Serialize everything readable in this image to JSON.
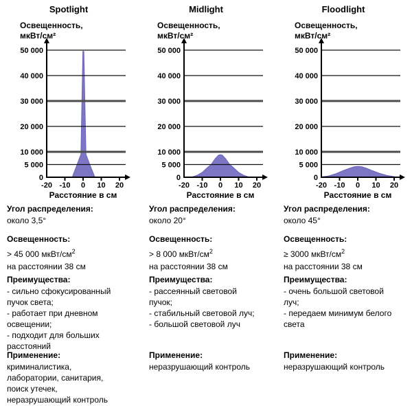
{
  "columns": [
    {
      "title": "Spotlight",
      "y_axis_label_line1": "Освещенность,",
      "y_axis_label_line2": "мкВт/см²",
      "x_axis_label": "Расстояние в см",
      "angle": {
        "label": "Угол распределения:",
        "value": "около 3,5°"
      },
      "illuminance": {
        "label": "Освещенность:",
        "value": "> 45 000 мкВт/см",
        "sup": "2",
        "note": "на расстоянии 38 см"
      },
      "advantages": {
        "label": "Преимущества:",
        "lines": [
          "- сильно сфокусированный",
          "пучок света;",
          "- работает при дневном",
          "освещении;",
          "- подходит для больших",
          "расстояний"
        ]
      },
      "application": {
        "label": "Применение:",
        "lines": [
          "криминалистика,",
          "лаборатории, санитария,",
          "поиск утечек,",
          "неразрушающий контроль"
        ]
      }
    },
    {
      "title": "Midlight",
      "y_axis_label_line1": "Освещенность,",
      "y_axis_label_line2": "мкВт/см²",
      "x_axis_label": "Расстояние в см",
      "angle": {
        "label": "Угол распределения:",
        "value": "около 20°"
      },
      "illuminance": {
        "label": "Освещенность:",
        "value": "> 8 000 мкВт/см",
        "sup": "2",
        "note": "на расстоянии 38 см"
      },
      "advantages": {
        "label": "Преимущества:",
        "lines": [
          "- рассеянный световой",
          "пучок;",
          "- стабильный световой луч;",
          "- большой световой луч"
        ]
      },
      "application": {
        "label": "Применение:",
        "lines": [
          "неразрушающий контроль"
        ]
      }
    },
    {
      "title": "Floodlight",
      "y_axis_label_line1": "Освещенность,",
      "y_axis_label_line2": "мкВт/см²",
      "x_axis_label": "Расстояние в см",
      "angle": {
        "label": "Угол распределения:",
        "value": "около 45°"
      },
      "illuminance": {
        "label": "Освещенность:",
        "value": "≥ 3000 мкВт/см",
        "sup": "2",
        "note": "на расстоянии 38 см"
      },
      "advantages": {
        "label": "Преимущества:",
        "lines": [
          "- очень большой световой",
          "луч;",
          "- передаем минимум белого",
          "света"
        ]
      },
      "application": {
        "label": "Применение:",
        "lines": [
          "неразрушающий контроль"
        ]
      }
    }
  ],
  "chart_data": [
    {
      "type": "area",
      "title": "Spotlight",
      "xlabel": "Расстояние в см",
      "ylabel": "Освещенность, мкВт/см²",
      "xlim": [
        -20,
        20
      ],
      "ylim": [
        0,
        50000
      ],
      "x_ticks": [
        -20,
        -10,
        0,
        10,
        20
      ],
      "x_tick_labels": [
        "-20",
        "-10",
        "0",
        "10",
        "20"
      ],
      "y_ticks": [
        0,
        5000,
        10000,
        20000,
        30000,
        40000,
        50000
      ],
      "y_tick_labels": [
        "0",
        "5 000",
        "10 000",
        "20 000",
        "30 000",
        "40 000",
        "50 000"
      ],
      "thick_gridlines": [
        10000,
        30000
      ],
      "grid": true,
      "legend": false,
      "fill_color": "#7c76c4",
      "edge_color": "#6b63b8",
      "peak_value": 49500,
      "x": [
        -6.0,
        -3.2,
        -1.2,
        -0.1,
        0.4,
        1.6,
        3.6,
        6.5
      ],
      "y": [
        0,
        5200,
        9000,
        49500,
        49500,
        9000,
        5200,
        0
      ]
    },
    {
      "type": "area",
      "title": "Midlight",
      "xlabel": "Расстояние в см",
      "ylabel": "Освещенность, мкВт/см²",
      "xlim": [
        -20,
        20
      ],
      "ylim": [
        0,
        50000
      ],
      "x_ticks": [
        -20,
        -10,
        0,
        10,
        20
      ],
      "x_tick_labels": [
        "-20",
        "-10",
        "0",
        "10",
        "20"
      ],
      "y_ticks": [
        0,
        5000,
        10000,
        20000,
        30000,
        40000,
        50000
      ],
      "y_tick_labels": [
        "0",
        "5 000",
        "10 000",
        "20 000",
        "30 000",
        "40 000",
        "50 000"
      ],
      "thick_gridlines": [
        10000,
        30000
      ],
      "grid": true,
      "legend": false,
      "fill_color": "#7c76c4",
      "edge_color": "#6b63b8",
      "peak_value": 8900,
      "x": [
        -16,
        -13,
        -10,
        -7,
        -5,
        -3,
        -1,
        0,
        1,
        3,
        5,
        7,
        10,
        13,
        16
      ],
      "y": [
        0,
        700,
        1900,
        3900,
        5100,
        7200,
        8700,
        8900,
        8700,
        7200,
        5100,
        3900,
        1900,
        700,
        0
      ]
    },
    {
      "type": "area",
      "title": "Floodlight",
      "xlabel": "Расстояние в см",
      "ylabel": "Освещенность, мкВт/см²",
      "xlim": [
        -20,
        20
      ],
      "ylim": [
        0,
        50000
      ],
      "x_ticks": [
        -20,
        -10,
        0,
        10,
        20
      ],
      "x_tick_labels": [
        "-20",
        "-10",
        "0",
        "10",
        "20"
      ],
      "y_ticks": [
        0,
        5000,
        10000,
        20000,
        30000,
        40000,
        50000
      ],
      "y_tick_labels": [
        "0",
        "5 000",
        "10 000",
        "20 000",
        "30 000",
        "40 000",
        "50 000"
      ],
      "thick_gridlines": [
        10000,
        30000
      ],
      "grid": true,
      "legend": false,
      "fill_color": "#7c76c4",
      "edge_color": "#6b63b8",
      "peak_value": 4250,
      "x": [
        -20,
        -16,
        -12,
        -8,
        -5,
        -2,
        0,
        2,
        5,
        8,
        12,
        16,
        20
      ],
      "y": [
        150,
        500,
        1400,
        2600,
        3400,
        4100,
        4250,
        4150,
        3500,
        2600,
        1500,
        700,
        250
      ]
    }
  ],
  "colors": {
    "fill": "#7c76c4",
    "edge": "#6b63b8",
    "axis": "#000000",
    "thin_grid": "#111111",
    "thick_grid": "#4d4d4d"
  }
}
